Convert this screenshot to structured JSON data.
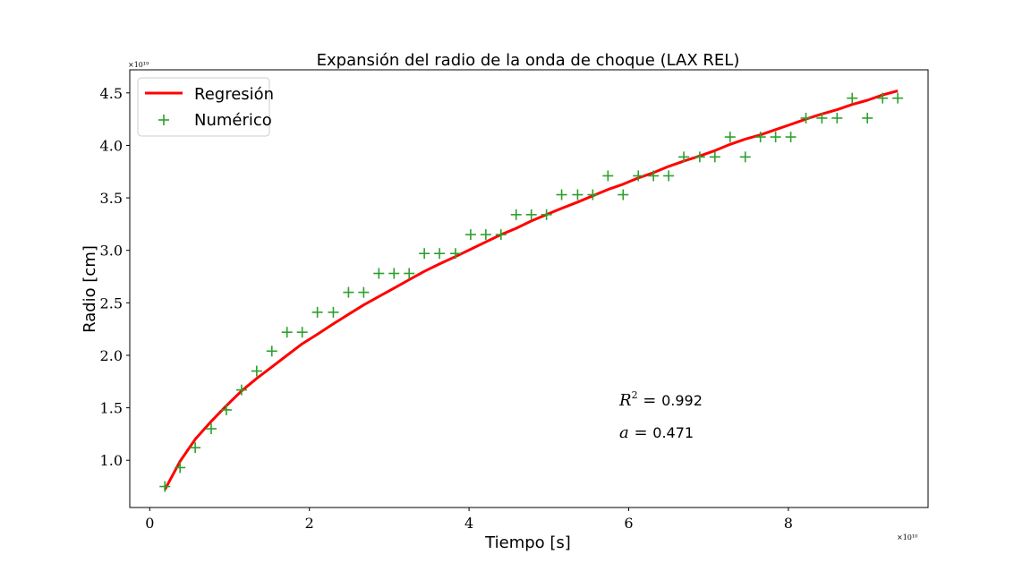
{
  "chart_data": {
    "type": "scatter",
    "title": "Expansión del radio de la onda de choque (LAX REL)",
    "xlabel": "Tiempo [s]",
    "ylabel": "Radio [cm]",
    "x_multiplier": "×10¹⁰",
    "y_multiplier": "×10¹⁹",
    "x_scale": 10000000000.0,
    "y_scale": 1e+19,
    "xlim": [
      -0.25,
      9.75
    ],
    "ylim": [
      0.55,
      4.72
    ],
    "xticks": [
      0,
      2,
      4,
      6,
      8
    ],
    "xtick_labels": [
      "0",
      "2",
      "4",
      "6",
      "8"
    ],
    "yticks": [
      1.0,
      1.5,
      2.0,
      2.5,
      3.0,
      3.5,
      4.0,
      4.5
    ],
    "ytick_labels": [
      "1.0",
      "1.5",
      "2.0",
      "2.5",
      "3.0",
      "3.5",
      "4.0",
      "4.5"
    ],
    "grid": false,
    "legend_position": "top-left",
    "series": [
      {
        "name": "Regresión",
        "kind": "line",
        "color": "#ff0000",
        "x": [
          0.19,
          0.38,
          0.57,
          0.77,
          0.96,
          1.15,
          1.34,
          1.53,
          1.72,
          1.91,
          2.1,
          2.3,
          2.49,
          2.68,
          2.87,
          3.06,
          3.25,
          3.44,
          3.63,
          3.83,
          4.02,
          4.21,
          4.4,
          4.59,
          4.78,
          4.97,
          5.16,
          5.36,
          5.55,
          5.74,
          5.93,
          6.12,
          6.31,
          6.5,
          6.69,
          6.89,
          7.08,
          7.27,
          7.46,
          7.65,
          7.84,
          8.03,
          8.22,
          8.42,
          8.61,
          8.8,
          8.99,
          9.18,
          9.37
        ],
        "y": [
          0.72,
          0.99,
          1.2,
          1.37,
          1.52,
          1.66,
          1.78,
          1.89,
          2.0,
          2.11,
          2.2,
          2.3,
          2.39,
          2.48,
          2.56,
          2.64,
          2.72,
          2.8,
          2.87,
          2.94,
          3.01,
          3.08,
          3.15,
          3.21,
          3.28,
          3.34,
          3.4,
          3.46,
          3.52,
          3.58,
          3.63,
          3.69,
          3.74,
          3.8,
          3.85,
          3.9,
          3.95,
          4.01,
          4.06,
          4.1,
          4.15,
          4.2,
          4.25,
          4.3,
          4.34,
          4.39,
          4.43,
          4.48,
          4.52
        ]
      },
      {
        "name": "Numérico",
        "kind": "scatter",
        "marker": "+",
        "color": "#2ca02c",
        "x": [
          0.19,
          0.38,
          0.57,
          0.77,
          0.96,
          1.15,
          1.34,
          1.53,
          1.72,
          1.91,
          2.1,
          2.3,
          2.49,
          2.68,
          2.87,
          3.06,
          3.25,
          3.44,
          3.63,
          3.83,
          4.02,
          4.21,
          4.4,
          4.59,
          4.78,
          4.97,
          5.16,
          5.36,
          5.55,
          5.74,
          5.93,
          6.12,
          6.31,
          6.5,
          6.69,
          6.89,
          7.08,
          7.27,
          7.46,
          7.65,
          7.84,
          8.03,
          8.22,
          8.42,
          8.61,
          8.8,
          8.99,
          9.18,
          9.37
        ],
        "y": [
          0.75,
          0.93,
          1.12,
          1.3,
          1.48,
          1.67,
          1.85,
          2.04,
          2.22,
          2.22,
          2.41,
          2.41,
          2.6,
          2.6,
          2.78,
          2.78,
          2.78,
          2.97,
          2.97,
          2.97,
          3.15,
          3.15,
          3.15,
          3.34,
          3.34,
          3.34,
          3.53,
          3.53,
          3.53,
          3.71,
          3.53,
          3.71,
          3.71,
          3.71,
          3.89,
          3.89,
          3.89,
          4.08,
          3.89,
          4.08,
          4.08,
          4.08,
          4.26,
          4.26,
          4.26,
          4.45,
          4.26,
          4.45,
          4.45
        ]
      }
    ],
    "annotations": [
      {
        "label": "R",
        "sup": "2",
        "op": " = ",
        "value": "0.992"
      },
      {
        "label": "a",
        "sup": "",
        "op": " = ",
        "value": " 0.471"
      }
    ]
  }
}
